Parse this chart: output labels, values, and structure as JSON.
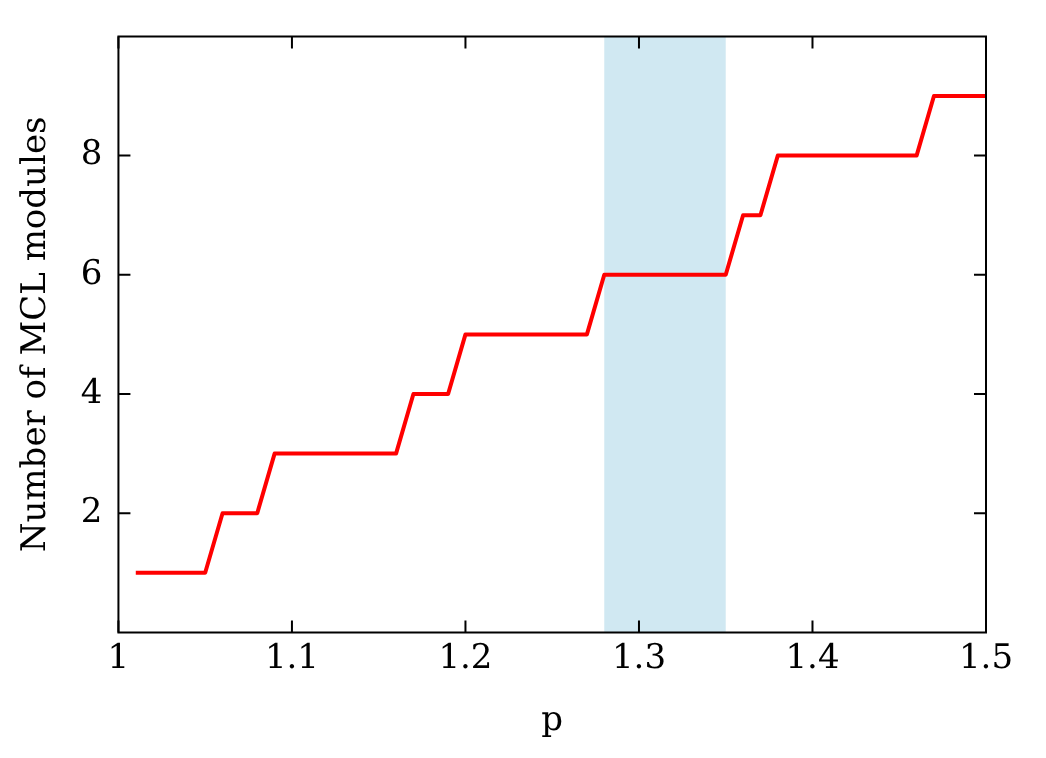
{
  "chart_data": {
    "type": "line",
    "xlabel": "p",
    "ylabel": "Number of MCL modules",
    "x": [
      1.01,
      1.05,
      1.06,
      1.08,
      1.09,
      1.16,
      1.17,
      1.19,
      1.2,
      1.27,
      1.28,
      1.35,
      1.36,
      1.37,
      1.38,
      1.46,
      1.47,
      1.5
    ],
    "series": [
      {
        "color": "#ff0000",
        "values": [
          1,
          1,
          2,
          2,
          3,
          3,
          4,
          4,
          5,
          5,
          6,
          6,
          7,
          7,
          8,
          8,
          9,
          9
        ]
      }
    ],
    "xlim": [
      1,
      1.5
    ],
    "xticks": [
      1,
      1.1,
      1.2,
      1.3,
      1.4,
      1.5
    ],
    "ylim": [
      0,
      10
    ],
    "yticks": [
      2,
      4,
      6,
      8
    ],
    "bands": [
      {
        "axis": "x",
        "from": 1.28,
        "to": 1.35,
        "color": "#d0e8f2"
      }
    ],
    "grid": false,
    "legend": false,
    "marker": "none",
    "line_style": "solid"
  }
}
